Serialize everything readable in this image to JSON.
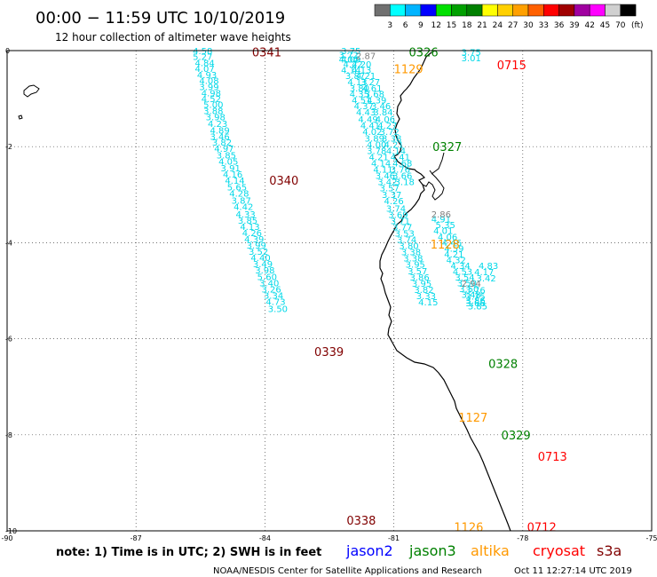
{
  "header": {
    "title": "00:00 − 11:59 UTC 10/10/2019",
    "subtitle": "12 hour collection of altimeter wave heights"
  },
  "legend_scale": {
    "labels": [
      "3",
      "6",
      "9",
      "12",
      "15",
      "18",
      "21",
      "24",
      "27",
      "30",
      "33",
      "36",
      "39",
      "42",
      "45",
      "70"
    ],
    "unit": "(ft)",
    "colors": [
      "#707070",
      "#00ffff",
      "#00b4ff",
      "#0000ff",
      "#00e000",
      "#00a000",
      "#008000",
      "#ffff00",
      "#ffd000",
      "#ffa000",
      "#ff6000",
      "#ff0000",
      "#a00000",
      "#a000a0",
      "#ff00ff",
      "#d0d0d0",
      "#000000"
    ]
  },
  "footer": {
    "note": "note:  1) Time is in UTC; 2) SWH is in feet",
    "satellites": [
      {
        "name": "jason2",
        "color": "#0000ff"
      },
      {
        "name": "jason3",
        "color": "#008000"
      },
      {
        "name": "altika",
        "color": "#ff9900"
      },
      {
        "name": "cryosat",
        "color": "#ff0000"
      },
      {
        "name": "s3a",
        "color": "#800000"
      }
    ],
    "credit": "NOAA/NESDIS Center for Satellite Applications and Research",
    "timestamp": "Oct 11 12:27:14 UTC 2019"
  },
  "chart_data": {
    "type": "scatter",
    "x_range": [
      -90,
      -75
    ],
    "y_range": [
      -10,
      0
    ],
    "x_ticks": [
      "-90",
      "-87",
      "-84",
      "-81",
      "-78",
      "-75"
    ],
    "y_ticks": [
      "0",
      "-2",
      "-4",
      "-6",
      "-8",
      "-10"
    ],
    "grid": "dotted",
    "pass_labels": [
      {
        "text": "0341",
        "color": "#800000",
        "lon": -84.3,
        "lat": -0.03
      },
      {
        "text": "0326",
        "color": "#008000",
        "lon": -80.65,
        "lat": -0.03
      },
      {
        "text": "0715",
        "color": "#ff0000",
        "lon": -78.6,
        "lat": -0.3
      },
      {
        "text": "1129",
        "color": "#ff9900",
        "lon": -81.0,
        "lat": -0.38
      },
      {
        "text": "0327",
        "color": "#008000",
        "lon": -80.1,
        "lat": -2.0
      },
      {
        "text": "0340",
        "color": "#800000",
        "lon": -83.9,
        "lat": -2.7
      },
      {
        "text": "1128",
        "color": "#ff9900",
        "lon": -80.15,
        "lat": -4.03
      },
      {
        "text": "0339",
        "color": "#800000",
        "lon": -82.85,
        "lat": -6.27
      },
      {
        "text": "0328",
        "color": "#008000",
        "lon": -78.8,
        "lat": -6.52
      },
      {
        "text": "1127",
        "color": "#ff9900",
        "lon": -79.5,
        "lat": -7.63
      },
      {
        "text": "0329",
        "color": "#008000",
        "lon": -78.5,
        "lat": -8.0
      },
      {
        "text": "0713",
        "color": "#ff0000",
        "lon": -77.65,
        "lat": -8.45
      },
      {
        "text": "0338",
        "color": "#800000",
        "lon": -82.1,
        "lat": -9.78
      },
      {
        "text": "1126",
        "color": "#ff9900",
        "lon": -79.6,
        "lat": -9.92
      },
      {
        "text": "0712",
        "color": "#ff0000",
        "lon": -77.9,
        "lat": -9.92
      }
    ],
    "series": [
      {
        "name": "0341",
        "color": "#00d8e8",
        "points": [
          {
            "lon": -85.45,
            "lat": 0.0,
            "v": "4.58"
          },
          {
            "lon": -85.45,
            "lat": -0.12,
            "v": "5.27"
          },
          {
            "lon": -85.4,
            "lat": -0.25,
            "v": "4.84"
          },
          {
            "lon": -85.4,
            "lat": -0.37,
            "v": "4.07"
          },
          {
            "lon": -85.35,
            "lat": -0.5,
            "v": "4.93"
          },
          {
            "lon": -85.3,
            "lat": -0.62,
            "v": "4.08"
          },
          {
            "lon": -85.3,
            "lat": -0.75,
            "v": "3.99"
          },
          {
            "lon": -85.25,
            "lat": -0.88,
            "v": "4.98"
          },
          {
            "lon": -85.25,
            "lat": -1.0,
            "v": "4.52"
          },
          {
            "lon": -85.2,
            "lat": -1.12,
            "v": "5.00"
          },
          {
            "lon": -85.2,
            "lat": -1.25,
            "v": "3.88"
          },
          {
            "lon": -85.15,
            "lat": -1.38,
            "v": "3.98"
          },
          {
            "lon": -85.1,
            "lat": -1.52,
            "v": "4.23"
          },
          {
            "lon": -85.05,
            "lat": -1.65,
            "v": "4.89"
          },
          {
            "lon": -85.05,
            "lat": -1.78,
            "v": "3.46"
          },
          {
            "lon": -85.0,
            "lat": -1.9,
            "v": "3.82"
          },
          {
            "lon": -84.95,
            "lat": -2.03,
            "v": "4.97"
          },
          {
            "lon": -84.9,
            "lat": -2.17,
            "v": "3.85"
          },
          {
            "lon": -84.85,
            "lat": -2.3,
            "v": "4.05"
          },
          {
            "lon": -84.8,
            "lat": -2.44,
            "v": "3.91"
          },
          {
            "lon": -84.75,
            "lat": -2.57,
            "v": "4.16"
          },
          {
            "lon": -84.7,
            "lat": -2.7,
            "v": "4.14"
          },
          {
            "lon": -84.65,
            "lat": -2.84,
            "v": "5.65"
          },
          {
            "lon": -84.6,
            "lat": -2.97,
            "v": "4.28"
          },
          {
            "lon": -84.55,
            "lat": -3.11,
            "v": "3.87"
          },
          {
            "lon": -84.5,
            "lat": -3.24,
            "v": "4.42"
          }
        ]
      },
      {
        "name": "0340",
        "color": "#00d8e8",
        "points": [
          {
            "lon": -84.45,
            "lat": -3.4,
            "v": "4.33"
          },
          {
            "lon": -84.4,
            "lat": -3.53,
            "v": "3.85"
          },
          {
            "lon": -84.35,
            "lat": -3.66,
            "v": "4.13"
          },
          {
            "lon": -84.3,
            "lat": -3.79,
            "v": "4.26"
          },
          {
            "lon": -84.25,
            "lat": -3.92,
            "v": "4.39"
          },
          {
            "lon": -84.2,
            "lat": -4.05,
            "v": "3.99"
          },
          {
            "lon": -84.15,
            "lat": -4.18,
            "v": "3.52"
          },
          {
            "lon": -84.1,
            "lat": -4.31,
            "v": "4.40"
          },
          {
            "lon": -84.05,
            "lat": -4.44,
            "v": "3.49"
          },
          {
            "lon": -84.0,
            "lat": -4.57,
            "v": "3.98"
          },
          {
            "lon": -83.95,
            "lat": -4.7,
            "v": "5.60"
          },
          {
            "lon": -83.9,
            "lat": -4.83,
            "v": "3.40"
          },
          {
            "lon": -83.85,
            "lat": -4.96,
            "v": "3.26"
          },
          {
            "lon": -83.8,
            "lat": -5.09,
            "v": "3.34"
          },
          {
            "lon": -83.75,
            "lat": -5.22,
            "v": "4.73"
          },
          {
            "lon": -83.7,
            "lat": -5.37,
            "v": "3.50"
          }
        ]
      },
      {
        "name": "0326",
        "color": "#00d8e8",
        "points": [
          {
            "lon": -82.0,
            "lat": 0.0,
            "v": "3.75"
          },
          {
            "lon": -82.05,
            "lat": -0.08,
            "v": "3.72"
          },
          {
            "lon": -82.05,
            "lat": -0.18,
            "v": "4.04"
          },
          {
            "lon": -81.95,
            "lat": -0.28,
            "v": "4.22"
          },
          {
            "lon": -82.0,
            "lat": -0.4,
            "v": "4.14"
          },
          {
            "lon": -81.9,
            "lat": -0.52,
            "v": "3.87"
          },
          {
            "lon": -81.85,
            "lat": -0.65,
            "v": "4.13"
          },
          {
            "lon": -81.8,
            "lat": -0.78,
            "v": "3.80"
          },
          {
            "lon": -81.8,
            "lat": -0.9,
            "v": "4.35"
          },
          {
            "lon": -81.75,
            "lat": -1.03,
            "v": "4.51"
          },
          {
            "lon": -81.7,
            "lat": -1.15,
            "v": "4.37"
          },
          {
            "lon": -81.65,
            "lat": -1.28,
            "v": "4.43"
          },
          {
            "lon": -81.6,
            "lat": -1.42,
            "v": "4.49"
          },
          {
            "lon": -81.55,
            "lat": -1.55,
            "v": "4.41"
          },
          {
            "lon": -81.5,
            "lat": -1.68,
            "v": "4.02"
          },
          {
            "lon": -81.45,
            "lat": -1.82,
            "v": "3.89"
          },
          {
            "lon": -81.4,
            "lat": -1.95,
            "v": "4.00"
          },
          {
            "lon": -81.4,
            "lat": -2.08,
            "v": "3.78"
          },
          {
            "lon": -81.35,
            "lat": -2.21,
            "v": "4.21"
          },
          {
            "lon": -81.3,
            "lat": -2.34,
            "v": "4.14"
          },
          {
            "lon": -81.25,
            "lat": -2.47,
            "v": "4.11"
          },
          {
            "lon": -81.2,
            "lat": -2.6,
            "v": "3.46"
          },
          {
            "lon": -81.15,
            "lat": -2.73,
            "v": "3.42"
          },
          {
            "lon": -81.1,
            "lat": -2.86,
            "v": "3.57"
          },
          {
            "lon": -81.05,
            "lat": -2.99,
            "v": "3.37"
          },
          {
            "lon": -81.0,
            "lat": -3.12,
            "v": "4.26"
          }
        ]
      },
      {
        "name": "0327",
        "color": "#00d8e8",
        "points": [
          {
            "lon": -82.0,
            "lat": -0.18,
            "v": "4.09"
          },
          {
            "lon": -81.75,
            "lat": -0.28,
            "v": "4.20"
          },
          {
            "lon": -81.75,
            "lat": -0.4,
            "v": "4.13"
          },
          {
            "lon": -81.65,
            "lat": -0.52,
            "v": "4.21"
          },
          {
            "lon": -81.55,
            "lat": -0.65,
            "v": "3.27"
          },
          {
            "lon": -81.5,
            "lat": -0.78,
            "v": "4.61"
          },
          {
            "lon": -81.45,
            "lat": -0.9,
            "v": "3.68"
          },
          {
            "lon": -81.4,
            "lat": -1.03,
            "v": "4.39"
          },
          {
            "lon": -81.3,
            "lat": -1.15,
            "v": "3.46"
          },
          {
            "lon": -81.25,
            "lat": -1.28,
            "v": "3.84"
          },
          {
            "lon": -81.2,
            "lat": -1.42,
            "v": "4.06"
          },
          {
            "lon": -81.15,
            "lat": -1.55,
            "v": "4.27"
          },
          {
            "lon": -81.1,
            "lat": -1.68,
            "v": "3.72"
          },
          {
            "lon": -81.05,
            "lat": -1.82,
            "v": "3.38"
          },
          {
            "lon": -81.0,
            "lat": -1.95,
            "v": "4.21"
          },
          {
            "lon": -80.95,
            "lat": -2.08,
            "v": "4.14"
          },
          {
            "lon": -80.85,
            "lat": -2.21,
            "v": "4.41"
          },
          {
            "lon": -80.8,
            "lat": -2.34,
            "v": "4.68"
          },
          {
            "lon": -80.85,
            "lat": -2.47,
            "v": "3.76"
          },
          {
            "lon": -80.8,
            "lat": -2.6,
            "v": "3.66"
          },
          {
            "lon": -80.75,
            "lat": -2.73,
            "v": "3.18"
          }
        ]
      },
      {
        "name": "0339",
        "color": "#00d8e8",
        "points": [
          {
            "lon": -80.95,
            "lat": -3.28,
            "v": "3.74"
          },
          {
            "lon": -80.9,
            "lat": -3.41,
            "v": "3.69"
          },
          {
            "lon": -80.85,
            "lat": -3.54,
            "v": "3.71"
          },
          {
            "lon": -80.8,
            "lat": -3.67,
            "v": "3.77"
          },
          {
            "lon": -80.75,
            "lat": -3.8,
            "v": "3.53"
          },
          {
            "lon": -80.7,
            "lat": -3.93,
            "v": "3.74"
          },
          {
            "lon": -80.65,
            "lat": -4.06,
            "v": "3.80"
          },
          {
            "lon": -80.6,
            "lat": -4.19,
            "v": "3.38"
          },
          {
            "lon": -80.55,
            "lat": -4.32,
            "v": "3.38"
          },
          {
            "lon": -80.5,
            "lat": -4.45,
            "v": "3.95"
          },
          {
            "lon": -80.45,
            "lat": -4.58,
            "v": "3.57"
          },
          {
            "lon": -80.4,
            "lat": -4.71,
            "v": "3.86"
          },
          {
            "lon": -80.35,
            "lat": -4.84,
            "v": "3.95"
          },
          {
            "lon": -80.3,
            "lat": -4.97,
            "v": "3.82"
          },
          {
            "lon": -80.25,
            "lat": -5.1,
            "v": "3.33"
          },
          {
            "lon": -80.2,
            "lat": -5.23,
            "v": "4.15"
          }
        ]
      },
      {
        "name": "0328",
        "color": "#00d8e8",
        "points": [
          {
            "lon": -79.9,
            "lat": -3.5,
            "v": "4.91"
          },
          {
            "lon": -79.8,
            "lat": -3.62,
            "v": "5.35"
          },
          {
            "lon": -79.85,
            "lat": -3.74,
            "v": "4.01"
          },
          {
            "lon": -79.75,
            "lat": -3.87,
            "v": "4.06"
          },
          {
            "lon": -79.65,
            "lat": -3.99,
            "v": "4.46"
          },
          {
            "lon": -79.6,
            "lat": -4.11,
            "v": "4.59"
          },
          {
            "lon": -79.6,
            "lat": -4.23,
            "v": "4.21"
          },
          {
            "lon": -79.55,
            "lat": -4.35,
            "v": "4.32"
          },
          {
            "lon": -79.45,
            "lat": -4.47,
            "v": "4.34"
          },
          {
            "lon": -79.4,
            "lat": -4.59,
            "v": "4.53"
          },
          {
            "lon": -79.35,
            "lat": -4.71,
            "v": "3.54"
          },
          {
            "lon": -79.3,
            "lat": -4.83,
            "v": "3.50"
          },
          {
            "lon": -79.25,
            "lat": -4.95,
            "v": "3.50"
          },
          {
            "lon": -79.2,
            "lat": -5.07,
            "v": "3.48"
          },
          {
            "lon": -79.1,
            "lat": -5.19,
            "v": "3.86"
          },
          {
            "lon": -79.05,
            "lat": -5.31,
            "v": "3.85"
          }
        ]
      },
      {
        "name": "0713",
        "color": "#00d8e8",
        "points": [
          {
            "lon": -78.8,
            "lat": -4.47,
            "v": "4.83"
          },
          {
            "lon": -78.9,
            "lat": -4.6,
            "v": "4.17"
          },
          {
            "lon": -78.85,
            "lat": -4.73,
            "v": "3.42"
          },
          {
            "lon": -79.1,
            "lat": -4.98,
            "v": "3.76"
          },
          {
            "lon": -79.1,
            "lat": -5.11,
            "v": "3.75"
          },
          {
            "lon": -79.1,
            "lat": -5.25,
            "v": "3.66"
          }
        ]
      },
      {
        "name": "0715",
        "color": "#00d8e8",
        "points": [
          {
            "lon": -79.2,
            "lat": -0.03,
            "v": "3.75"
          },
          {
            "lon": -79.2,
            "lat": -0.15,
            "v": "3.01"
          }
        ]
      }
    ],
    "gray_points": [
      {
        "lon": -81.65,
        "lat": -0.1,
        "v": "2.87"
      },
      {
        "lon": -79.9,
        "lat": -3.4,
        "v": "2.86"
      },
      {
        "lon": -79.2,
        "lat": -4.84,
        "v": "2.94"
      }
    ]
  }
}
